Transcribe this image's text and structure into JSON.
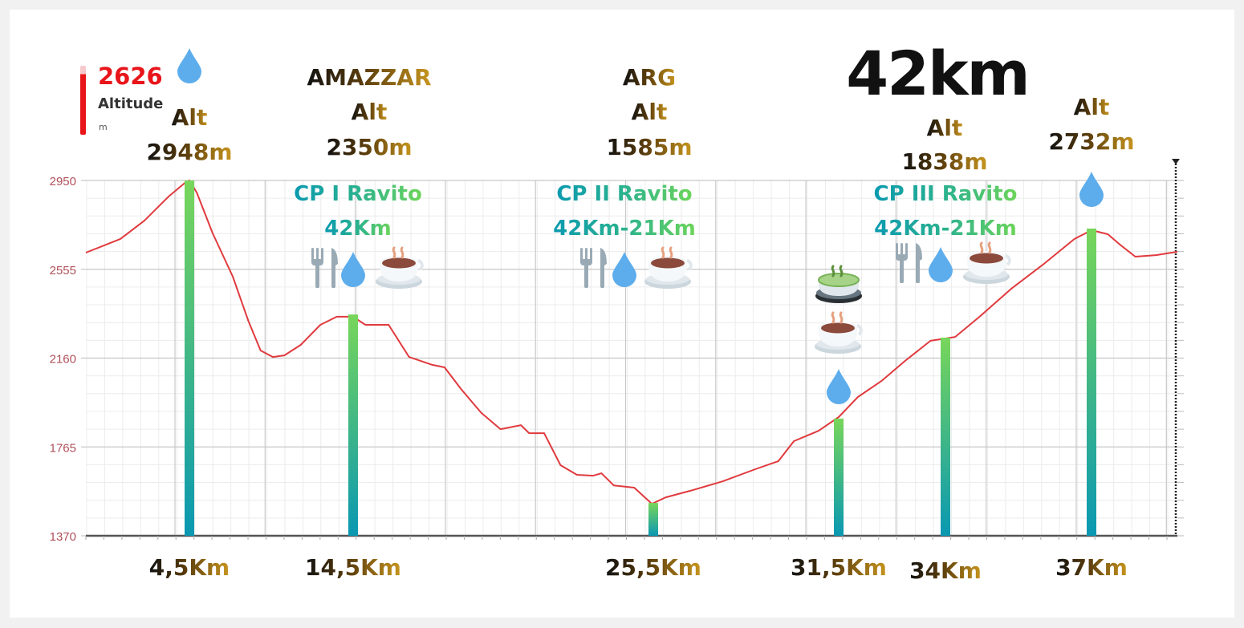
{
  "legend": {
    "value": "2626",
    "name": "Altitude",
    "unit": "m"
  },
  "title": "42km",
  "colors": {
    "profile": "#e03a3e",
    "bar_top": "#78d65a",
    "bar_bottom": "#0a98b2",
    "axis_label": "#b0505a"
  },
  "chart_data": {
    "type": "area",
    "title": "42km",
    "ylabel": "Altitude (m)",
    "ylim": [
      1370,
      2950
    ],
    "xlim": [
      0,
      42
    ],
    "yticks": [
      "2950",
      "2555",
      "2160",
      "1765",
      "1370"
    ],
    "grid": true,
    "profile": [
      [
        0,
        2629
      ],
      [
        1.5,
        2690
      ],
      [
        2.55,
        2772
      ],
      [
        3.6,
        2879
      ],
      [
        4.3,
        2939
      ],
      [
        4.5,
        2950
      ],
      [
        4.95,
        2896
      ],
      [
        5.9,
        2718
      ],
      [
        7.15,
        2522
      ],
      [
        8.1,
        2326
      ],
      [
        8.85,
        2194
      ],
      [
        9.6,
        2165
      ],
      [
        10.3,
        2172
      ],
      [
        11.3,
        2219
      ],
      [
        12.5,
        2308
      ],
      [
        13.5,
        2344
      ],
      [
        14.5,
        2344
      ],
      [
        14.95,
        2308
      ],
      [
        15.8,
        2308
      ],
      [
        16.55,
        2165
      ],
      [
        17.4,
        2130
      ],
      [
        17.85,
        2119
      ],
      [
        18.45,
        2023
      ],
      [
        19.2,
        1916
      ],
      [
        19.9,
        1844
      ],
      [
        20.65,
        1862
      ],
      [
        20.95,
        1826
      ],
      [
        21.5,
        1826
      ],
      [
        22.1,
        1684
      ],
      [
        22.7,
        1641
      ],
      [
        23.3,
        1637
      ],
      [
        23.6,
        1648
      ],
      [
        24.05,
        1594
      ],
      [
        24.8,
        1584
      ],
      [
        25.45,
        1512
      ],
      [
        25.9,
        1541
      ],
      [
        26.7,
        1570
      ],
      [
        27.75,
        1612
      ],
      [
        28.8,
        1666
      ],
      [
        29.55,
        1702
      ],
      [
        30.05,
        1791
      ],
      [
        30.85,
        1837
      ],
      [
        31.5,
        1898
      ],
      [
        31.95,
        1987
      ],
      [
        32.5,
        2058
      ],
      [
        33.05,
        2147
      ],
      [
        33.65,
        2237
      ],
      [
        34.2,
        2254
      ],
      [
        34.7,
        2344
      ],
      [
        35.35,
        2468
      ],
      [
        36.0,
        2575
      ],
      [
        36.65,
        2690
      ],
      [
        37,
        2729
      ],
      [
        37.95,
        2711
      ],
      [
        38.65,
        2665
      ],
      [
        39.55,
        2611
      ],
      [
        40.75,
        2618
      ],
      [
        42,
        2633
      ]
    ],
    "markers": [
      {
        "km": 4.5,
        "alt": 2950,
        "label": "4,5Km"
      },
      {
        "km": 14.5,
        "alt": 2354,
        "label": "14,5Km"
      },
      {
        "km": 25.5,
        "alt": 1516,
        "label": "25,5Km"
      },
      {
        "km": 31.5,
        "alt": 1891,
        "label": "31,5Km"
      },
      {
        "km": 34,
        "alt": 2251,
        "label": "34Km"
      },
      {
        "km": 37,
        "alt": 2736,
        "label": "37Km"
      }
    ]
  },
  "annotations": {
    "a1": {
      "alt": "Alt",
      "value": "2948m",
      "icons": [
        "water-drop"
      ]
    },
    "a2": {
      "name": "AMAZZAR",
      "alt": "Alt",
      "value": "2350m",
      "cp": "CP I Ravito",
      "dist": "42Km",
      "icons": [
        "fork-knife",
        "water-drop",
        "hot-beverage"
      ]
    },
    "a3": {
      "name": "ARG",
      "alt": "Alt",
      "value": "1585m",
      "cp": "CP II Ravito",
      "dist": "42Km-21Km",
      "icons": [
        "fork-knife",
        "water-drop",
        "hot-beverage"
      ]
    },
    "a4": {
      "icons": [
        "matcha-tea",
        "hot-beverage",
        "water-drop"
      ]
    },
    "a5": {
      "alt": "Alt",
      "value": "1838m",
      "cp": "CP III Ravito",
      "dist": "42Km-21Km",
      "icons": [
        "fork-knife",
        "water-drop",
        "hot-beverage"
      ]
    },
    "a6": {
      "alt": "Alt",
      "value": "2732m",
      "icons": [
        "water-drop"
      ]
    }
  }
}
